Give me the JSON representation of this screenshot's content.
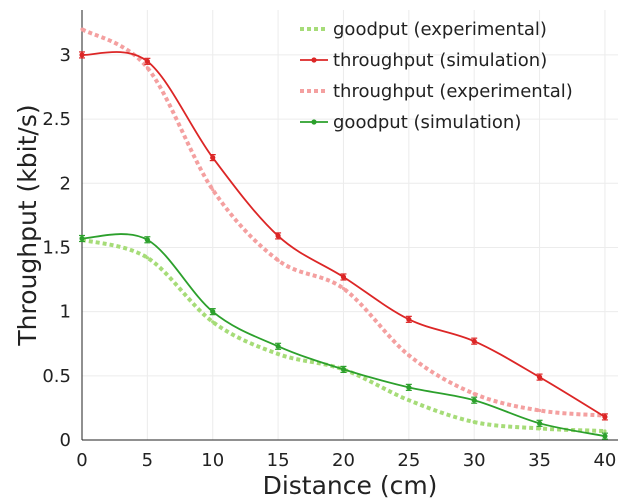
{
  "chart_data": {
    "type": "line",
    "xlabel": "Distance (cm)",
    "ylabel": "Throughput (kbit/s)",
    "xlim": [
      0,
      41
    ],
    "ylim": [
      0,
      3.35
    ],
    "grid": true,
    "legend_position": "top-right",
    "x_ticks": [
      0,
      5,
      10,
      15,
      20,
      25,
      30,
      35,
      40
    ],
    "x_tick_labels": [
      "0",
      "5",
      "10",
      "15",
      "20",
      "25",
      "30",
      "35",
      "40"
    ],
    "y_ticks": [
      0,
      0.5,
      1,
      1.5,
      2,
      2.5,
      3
    ],
    "y_tick_labels": [
      "0",
      "0.5",
      "1",
      "1.5",
      "2",
      "2.5",
      "3"
    ],
    "series": [
      {
        "name": "goodput (experimental)",
        "style": "dotted",
        "color": "#a6dc78",
        "x": [
          0,
          5,
          10,
          15,
          20,
          25,
          30,
          35,
          40
        ],
        "y": [
          1.56,
          1.42,
          0.92,
          0.67,
          0.55,
          0.31,
          0.14,
          0.09,
          0.07
        ]
      },
      {
        "name": "throughput (simulation)",
        "style": "solid",
        "color": "#dc2626",
        "x": [
          0,
          5,
          10,
          15,
          20,
          25,
          30,
          35,
          40
        ],
        "y": [
          3.0,
          2.95,
          2.2,
          1.59,
          1.27,
          0.94,
          0.77,
          0.49,
          0.18
        ]
      },
      {
        "name": "throughput (experimental)",
        "style": "dotted",
        "color": "#f4a0a0",
        "x": [
          0,
          5,
          10,
          15,
          20,
          25,
          30,
          35,
          40
        ],
        "y": [
          3.2,
          2.9,
          1.95,
          1.4,
          1.18,
          0.66,
          0.36,
          0.23,
          0.19
        ]
      },
      {
        "name": "goodput (simulation)",
        "style": "solid",
        "color": "#2ca02c",
        "x": [
          0,
          5,
          10,
          15,
          20,
          25,
          30,
          35,
          40
        ],
        "y": [
          1.57,
          1.56,
          1.0,
          0.73,
          0.55,
          0.41,
          0.31,
          0.13,
          0.03
        ]
      }
    ]
  }
}
